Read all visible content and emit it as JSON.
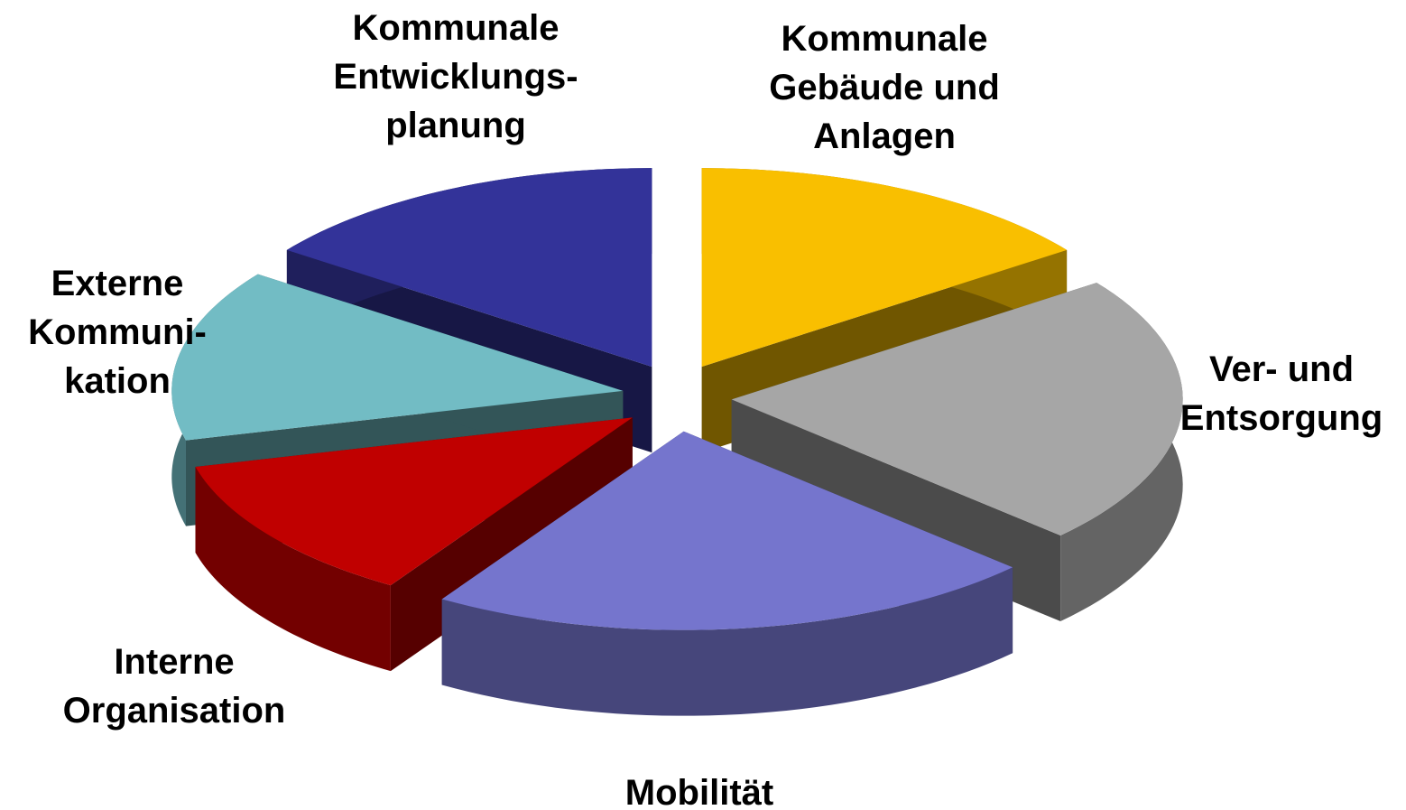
{
  "chart_data": {
    "type": "pie3d",
    "categories": [
      "Kommunale\nGebäude und\nAnlagen",
      "Ver- und\nEntsorgung",
      "Mobilität",
      "Interne\nOrganisation",
      "Externe\nKommuni-\nkation",
      "Kommunale\nEntwicklungs-\nplanung"
    ],
    "values": [
      15,
      22,
      22,
      12,
      14,
      15
    ],
    "colors": [
      "#f9bf00",
      "#a6a6a6",
      "#7575cd",
      "#c00000",
      "#72bcc4",
      "#333399"
    ]
  }
}
